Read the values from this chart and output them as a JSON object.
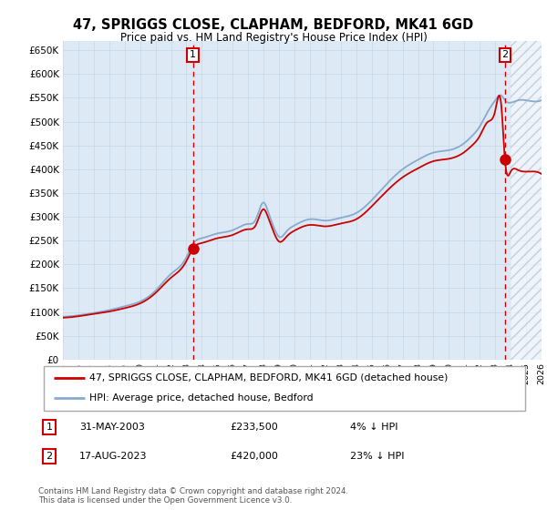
{
  "title": "47, SPRIGGS CLOSE, CLAPHAM, BEDFORD, MK41 6GD",
  "subtitle": "Price paid vs. HM Land Registry's House Price Index (HPI)",
  "ylim": [
    0,
    670000
  ],
  "yticks": [
    0,
    50000,
    100000,
    150000,
    200000,
    250000,
    300000,
    350000,
    400000,
    450000,
    500000,
    550000,
    600000,
    650000
  ],
  "xlim": [
    1995,
    2026
  ],
  "transaction1": {
    "date_label": "31-MAY-2003",
    "price": 233500,
    "hpi_diff": "4% ↓ HPI",
    "marker_num": "1",
    "x_year": 2003.42
  },
  "transaction2": {
    "date_label": "17-AUG-2023",
    "price": 420000,
    "hpi_diff": "23% ↓ HPI",
    "marker_num": "2",
    "x_year": 2023.63
  },
  "legend_line1": "47, SPRIGGS CLOSE, CLAPHAM, BEDFORD, MK41 6GD (detached house)",
  "legend_line2": "HPI: Average price, detached house, Bedford",
  "footnote": "Contains HM Land Registry data © Crown copyright and database right 2024.\nThis data is licensed under the Open Government Licence v3.0.",
  "line_color_price": "#cc0000",
  "line_color_hpi": "#88aacc",
  "grid_color": "#c8daea",
  "background_color": "#ffffff",
  "plot_bg_color": "#ddeaf5",
  "hatch_color": "#c0d0e0",
  "hatch_start": 2024.0,
  "hatch_end": 2026.0,
  "figsize": [
    6.0,
    5.6
  ],
  "dpi": 100
}
